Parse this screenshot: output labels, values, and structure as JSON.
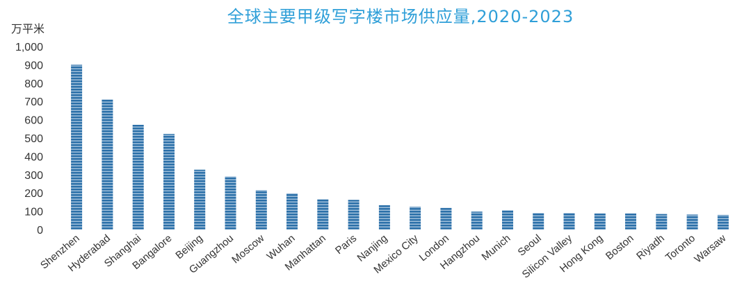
{
  "chart_data": {
    "type": "bar",
    "title": "全球主要甲级写字楼市场供应量,2020-2023",
    "ylabel": "万平米",
    "xlabel": "",
    "ylim": [
      0,
      1000
    ],
    "ytick_labels": [
      "0",
      "100",
      "200",
      "300",
      "400",
      "500",
      "600",
      "700",
      "800",
      "900",
      "1,000"
    ],
    "categories": [
      "Shenzhen",
      "Hyderabad",
      "Shanghai",
      "Bangalore",
      "Beijing",
      "Guangzhou",
      "Moscow",
      "Wuhan",
      "Manhattan",
      "Paris",
      "Nanjing",
      "Mexico City",
      "London",
      "Hangzhou",
      "Munich",
      "Seoul",
      "Silicon Valley",
      "Hong Kong",
      "Boston",
      "Riyadh",
      "Toronto",
      "Warsaw"
    ],
    "values": [
      900,
      710,
      572,
      522,
      327,
      290,
      215,
      198,
      165,
      162,
      133,
      125,
      118,
      98,
      105,
      90,
      90,
      88,
      88,
      85,
      82,
      80
    ],
    "grid": false,
    "legend": "none",
    "bar_color": "#2a6fa8",
    "bar_stripe_color": "#cfe0f0"
  }
}
